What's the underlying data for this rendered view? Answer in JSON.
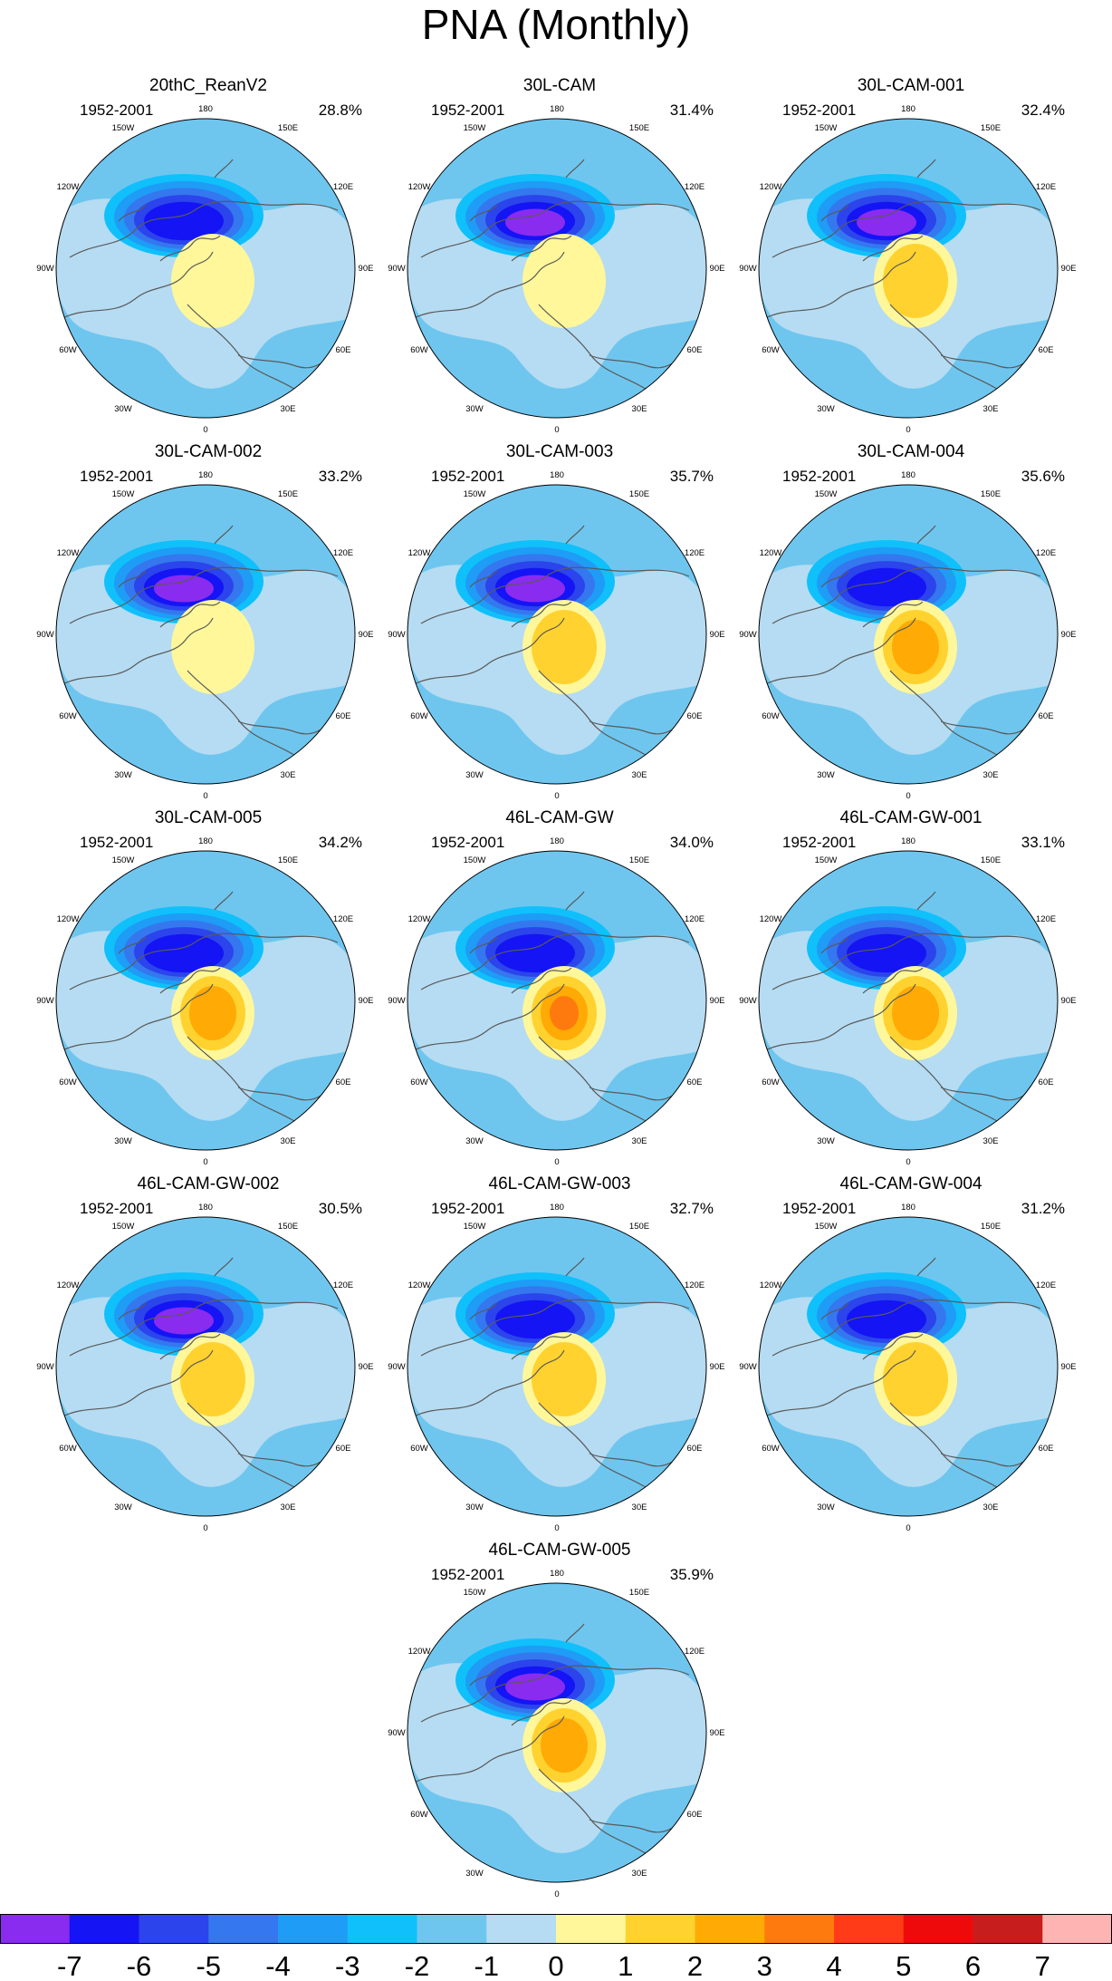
{
  "title": "PNA (Monthly)",
  "longitude_labels": [
    "180",
    "150E",
    "120E",
    "90E",
    "60E",
    "30E",
    "0",
    "30W",
    "60W",
    "90W",
    "120W",
    "150W"
  ],
  "panels": [
    {
      "name": "20thC_ReanV2",
      "period": "1952-2001",
      "variance": "28.8%",
      "low_min": -6,
      "high_max": 2
    },
    {
      "name": "30L-CAM",
      "period": "1952-2001",
      "variance": "31.4%",
      "low_min": -7,
      "high_max": 2
    },
    {
      "name": "30L-CAM-001",
      "period": "1952-2001",
      "variance": "32.4%",
      "low_min": -7,
      "high_max": 3
    },
    {
      "name": "30L-CAM-002",
      "period": "1952-2001",
      "variance": "33.2%",
      "low_min": -7,
      "high_max": 2
    },
    {
      "name": "30L-CAM-003",
      "period": "1952-2001",
      "variance": "35.7%",
      "low_min": -7,
      "high_max": 3
    },
    {
      "name": "30L-CAM-004",
      "period": "1952-2001",
      "variance": "35.6%",
      "low_min": -6,
      "high_max": 4
    },
    {
      "name": "30L-CAM-005",
      "period": "1952-2001",
      "variance": "34.2%",
      "low_min": -6,
      "high_max": 4
    },
    {
      "name": "46L-CAM-GW",
      "period": "1952-2001",
      "variance": "34.0%",
      "low_min": -6,
      "high_max": 5
    },
    {
      "name": "46L-CAM-GW-001",
      "period": "1952-2001",
      "variance": "33.1%",
      "low_min": -6,
      "high_max": 4
    },
    {
      "name": "46L-CAM-GW-002",
      "period": "1952-2001",
      "variance": "30.5%",
      "low_min": -7,
      "high_max": 3
    },
    {
      "name": "46L-CAM-GW-003",
      "period": "1952-2001",
      "variance": "32.7%",
      "low_min": -6,
      "high_max": 3
    },
    {
      "name": "46L-CAM-GW-004",
      "period": "1952-2001",
      "variance": "31.2%",
      "low_min": -6,
      "high_max": 3
    },
    {
      "name": "46L-CAM-GW-005",
      "period": "1952-2001",
      "variance": "35.9%",
      "low_min": -7,
      "high_max": 4
    }
  ],
  "colorbar": {
    "labels": [
      "-7",
      "-6",
      "-5",
      "-4",
      "-3",
      "-2",
      "-1",
      "0",
      "1",
      "2",
      "3",
      "4",
      "5",
      "6",
      "7"
    ],
    "colors": [
      "#8a2bf0",
      "#1414f5",
      "#2b44eb",
      "#3577ee",
      "#1e9cf6",
      "#0fc0fb",
      "#6ec6ef",
      "#b5dcf2",
      "#fff79a",
      "#ffd22f",
      "#ffaa05",
      "#ff7a0e",
      "#ff3c17",
      "#ee0a0a",
      "#c81d1d",
      "#ffb4b4"
    ]
  }
}
